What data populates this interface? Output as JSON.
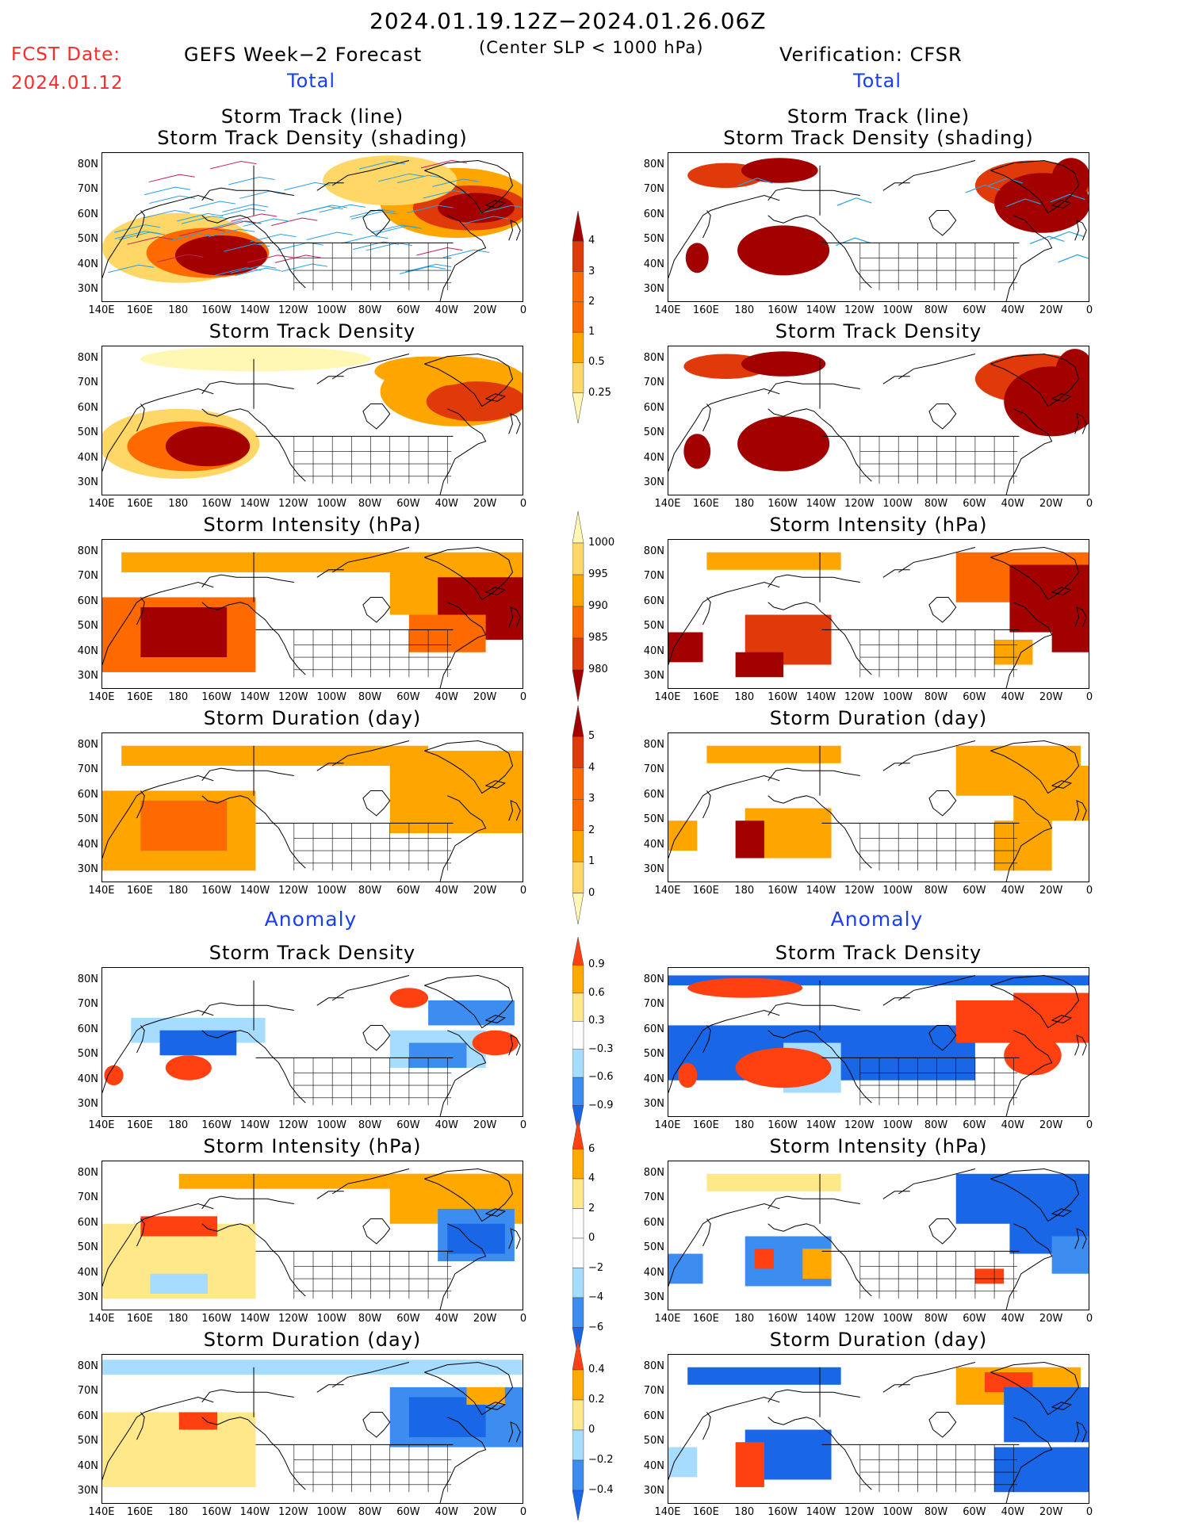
{
  "header": {
    "date_range": "2024.01.19.12Z−2024.01.26.06Z",
    "fcst_label": "FCST Date:",
    "fcst_date": "2024.01.12",
    "left_title": "GEFS Week−2 Forecast",
    "criterion": "(Center SLP < 1000 hPa)",
    "right_title": "Verification: CFSR",
    "total_left": "Total",
    "total_right": "Total",
    "anomaly_left": "Anomaly",
    "anomaly_right": "Anomaly"
  },
  "colors": {
    "title_red": "#ff2a2a",
    "section_blue": "#1a3ff0",
    "total_scale": [
      "#fff7b3",
      "#ffd766",
      "#ffa500",
      "#ff6a00",
      "#e03a0a",
      "#a30000"
    ],
    "anomaly_scale": [
      "#1966e6",
      "#3d8cf0",
      "#a6dcff",
      "#ffffff",
      "#ffe88a",
      "#ffa800",
      "#ff4010"
    ]
  },
  "axes": {
    "lon_ticks": [
      "140E",
      "160E",
      "180",
      "160W",
      "140W",
      "120W",
      "100W",
      "80W",
      "60W",
      "40W",
      "20W",
      "0"
    ],
    "lat_ticks": [
      "80N",
      "70N",
      "60N",
      "50N",
      "40N",
      "30N"
    ]
  },
  "panels": {
    "total": [
      {
        "key": "track",
        "title_l1": "Storm Track (line)",
        "title_l2": "Storm Track Density (shading)"
      },
      {
        "key": "density",
        "title_l1": "Storm Track Density",
        "title_l2": ""
      },
      {
        "key": "intensity",
        "title_l1": "Storm Intensity (hPa)",
        "title_l2": ""
      },
      {
        "key": "duration",
        "title_l1": "Storm Duration (day)",
        "title_l2": ""
      }
    ],
    "anomaly": [
      {
        "key": "density_anom",
        "title_l1": "Storm Track Density",
        "title_l2": ""
      },
      {
        "key": "intensity_anom",
        "title_l1": "Storm Intensity (hPa)",
        "title_l2": ""
      },
      {
        "key": "duration_anom",
        "title_l1": "Storm Duration (day)",
        "title_l2": ""
      }
    ]
  },
  "colorbars": {
    "density": [
      "4",
      "3",
      "2",
      "1",
      "0.5",
      "0.25"
    ],
    "intensity": [
      "1000",
      "995",
      "990",
      "985",
      "980"
    ],
    "duration": [
      "5",
      "4",
      "3",
      "2",
      "1",
      "0"
    ],
    "density_anom": [
      "0.9",
      "0.6",
      "0.3",
      "−0.3",
      "−0.6",
      "−0.9"
    ],
    "intensity_anom": [
      "6",
      "4",
      "2",
      "0",
      "−2",
      "−4",
      "−6"
    ],
    "duration_anom": [
      "0.4",
      "0.2",
      "0",
      "−0.2",
      "−0.4"
    ]
  }
}
